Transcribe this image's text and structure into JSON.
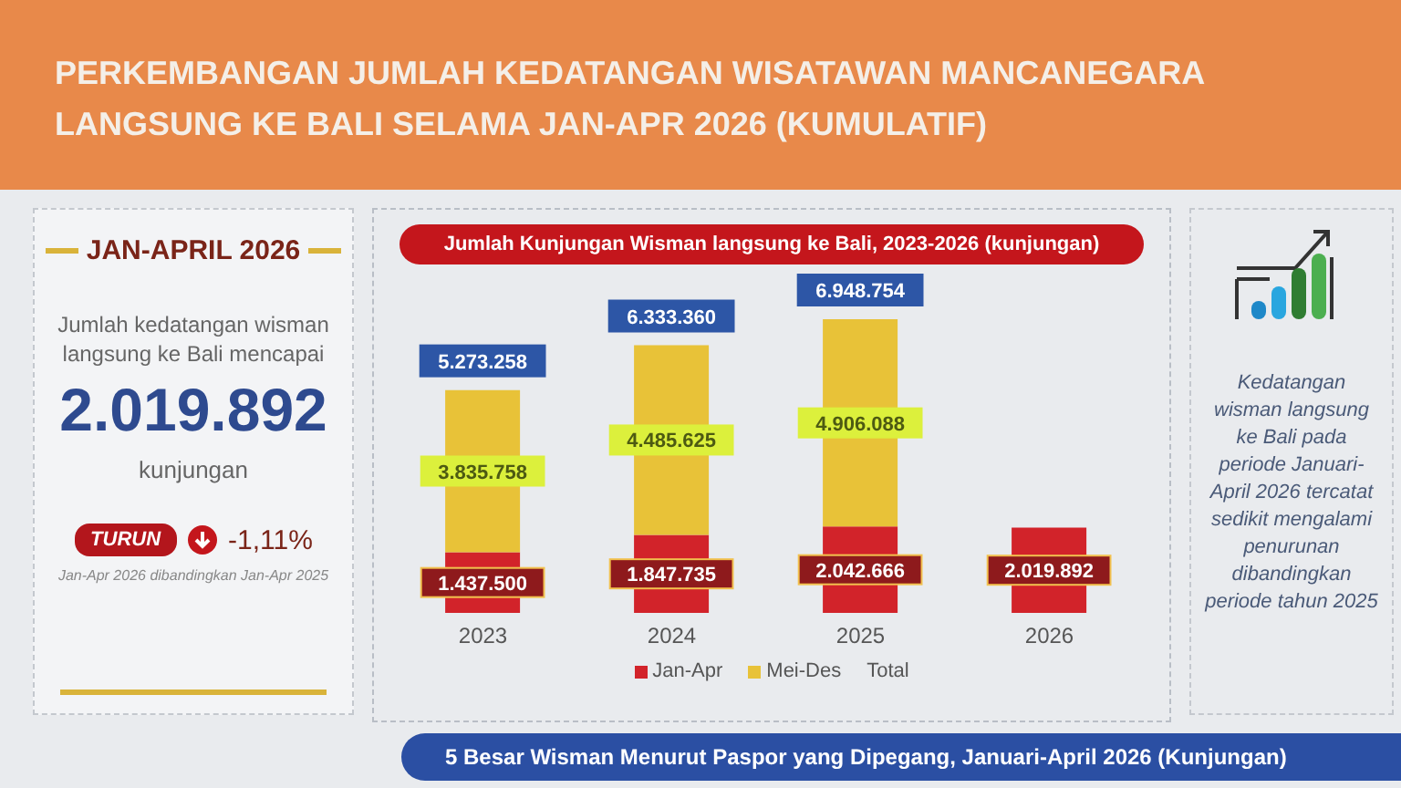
{
  "chart_data": [
    {
      "type": "other",
      "title": "PERKEMBANGAN JUMLAH KEDATANGAN WISATAWAN MANCANEGARA LANGSUNG KE BALI SELAMA JAN-APR 2026 (KUMULATIF)"
    },
    {
      "type": "other",
      "title": "JAN-APRIL 2026",
      "annotations": [
        "Jumlah kedatangan wisman langsung ke Bali mencapai",
        "2.019.892",
        "kunjungan",
        "TURUN",
        "-1,11%",
        "Jan-Apr 2026 dibandingkan Jan-Apr 2025"
      ]
    },
    {
      "type": "bar",
      "title": "Jumlah Kunjungan Wisman langsung ke Bali, 2023-2026 (kunjungan)",
      "categories": [
        "2023",
        "2024",
        "2025",
        "2026"
      ],
      "stacked": true,
      "series": [
        {
          "name": "Jan-Apr",
          "color": "#d2232a",
          "values": [
            1437500,
            1847735,
            2042666,
            2019892
          ],
          "value_labels": [
            "1.437.500",
            "1.847.735",
            "2.042.666",
            "2.019.892"
          ]
        },
        {
          "name": "Mei-Des",
          "color": "#e8c238",
          "values": [
            3835758,
            4485625,
            4906088,
            null
          ],
          "value_labels": [
            "3.835.758",
            "4.485.625",
            "4.906.088",
            null
          ]
        }
      ],
      "totals": [
        "5.273.258",
        "6.333.360",
        "6.948.754",
        null
      ],
      "annotations": [
        "Total"
      ],
      "legend": "bottom"
    },
    {
      "type": "other",
      "annotations": [
        "Kedatangan wisman langsung ke Bali pada periode Januari-April 2026 tercatat sedikit mengalami penurunan dibandingkan periode tahun 2025"
      ]
    },
    {
      "type": "other",
      "title": "5 Besar Wisman Menurut Paspor yang Dipegang, Januari-April 2026 (Kunjungan)"
    }
  ]
}
